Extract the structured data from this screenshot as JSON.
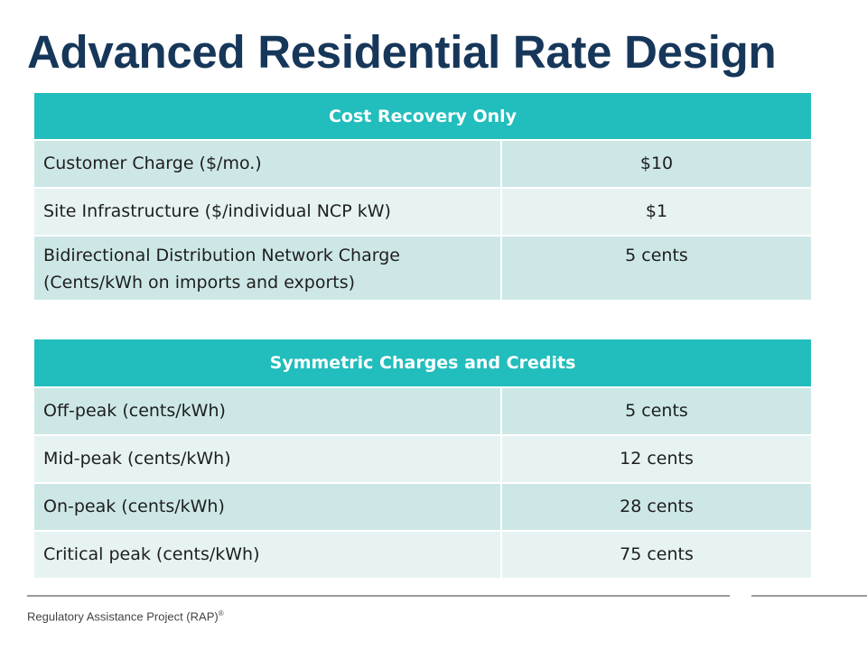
{
  "title": "Advanced Residential Rate Design",
  "tables": [
    {
      "header": "Cost Recovery Only",
      "rows": [
        {
          "label": "Customer Charge ($/mo.)",
          "value": "$10"
        },
        {
          "label": "Site Infrastructure ($/individual NCP kW)",
          "value": "$1"
        },
        {
          "label_line1": "Bidirectional Distribution Network Charge",
          "label_line2": "(Cents/kWh on imports and exports)",
          "value": "5 cents"
        }
      ]
    },
    {
      "header": "Symmetric Charges and Credits",
      "rows": [
        {
          "label": "Off-peak (cents/kWh)",
          "value": "5 cents"
        },
        {
          "label": "Mid-peak (cents/kWh)",
          "value": "12 cents"
        },
        {
          "label": "On-peak (cents/kWh)",
          "value": "28 cents"
        },
        {
          "label": "Critical peak (cents/kWh)",
          "value": "75 cents"
        }
      ]
    }
  ],
  "footer": {
    "text": "Regulatory Assistance Project (RAP)",
    "mark": "®"
  },
  "colors": {
    "title": "#16375a",
    "table_header": "#22bdbd",
    "row_light": "#cde7e7",
    "row_lighter": "#e7f3f3"
  }
}
